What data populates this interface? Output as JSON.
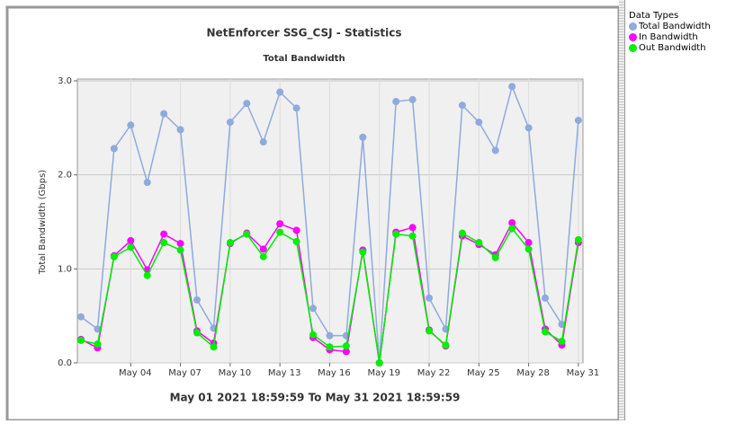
{
  "chart_data": {
    "type": "line",
    "title": "NetEnforcer SSG_CSJ - Statistics",
    "subtitle": "Total Bandwidth",
    "y_label": "Total Bandwidth (Gbps)",
    "x_label": "May 01 2021 18:59:59  To  May 31 2021 18:59:59",
    "legend_title": "Data Types",
    "categories": [
      null,
      null,
      null,
      "May 04",
      null,
      null,
      "May 07",
      null,
      null,
      "May 10",
      null,
      null,
      "May 13",
      null,
      null,
      "May 16",
      null,
      null,
      "May 19",
      null,
      null,
      "May 22",
      null,
      null,
      "May 25",
      null,
      null,
      "May 28",
      null,
      null,
      "May 31"
    ],
    "series": [
      {
        "name": "Total Bandwidth",
        "color": "#8faadc",
        "values": [
          0.49,
          0.36,
          2.28,
          2.53,
          1.92,
          2.65,
          2.48,
          0.67,
          0.37,
          2.56,
          2.76,
          2.35,
          2.88,
          2.71,
          0.58,
          0.29,
          0.29,
          2.4,
          0.0,
          2.78,
          2.8,
          0.69,
          0.36,
          2.74,
          2.56,
          2.26,
          2.94,
          2.5,
          0.69,
          0.41,
          2.58
        ]
      },
      {
        "name": "In Bandwidth",
        "color": "#ff00ff",
        "values": [
          0.25,
          0.16,
          1.14,
          1.3,
          0.99,
          1.37,
          1.27,
          0.34,
          0.21,
          1.27,
          1.38,
          1.21,
          1.48,
          1.41,
          0.27,
          0.14,
          0.12,
          1.2,
          0.0,
          1.39,
          1.44,
          0.35,
          0.18,
          1.35,
          1.26,
          1.15,
          1.49,
          1.28,
          0.36,
          0.19,
          1.28
        ]
      },
      {
        "name": "Out Bandwidth",
        "color": "#00ee00",
        "values": [
          0.24,
          0.2,
          1.13,
          1.23,
          0.93,
          1.28,
          1.2,
          0.32,
          0.17,
          1.28,
          1.37,
          1.13,
          1.39,
          1.29,
          0.3,
          0.17,
          0.18,
          1.18,
          0.0,
          1.37,
          1.35,
          0.34,
          0.19,
          1.38,
          1.28,
          1.12,
          1.43,
          1.21,
          0.33,
          0.23,
          1.31
        ]
      }
    ],
    "ylim": [
      0,
      3
    ],
    "yticks": [
      {
        "value": 0,
        "label": "0.0"
      },
      {
        "value": 1,
        "label": "1.0"
      },
      {
        "value": 2,
        "label": "2.0"
      },
      {
        "value": 3,
        "label": "3.0"
      }
    ],
    "grid": true
  }
}
